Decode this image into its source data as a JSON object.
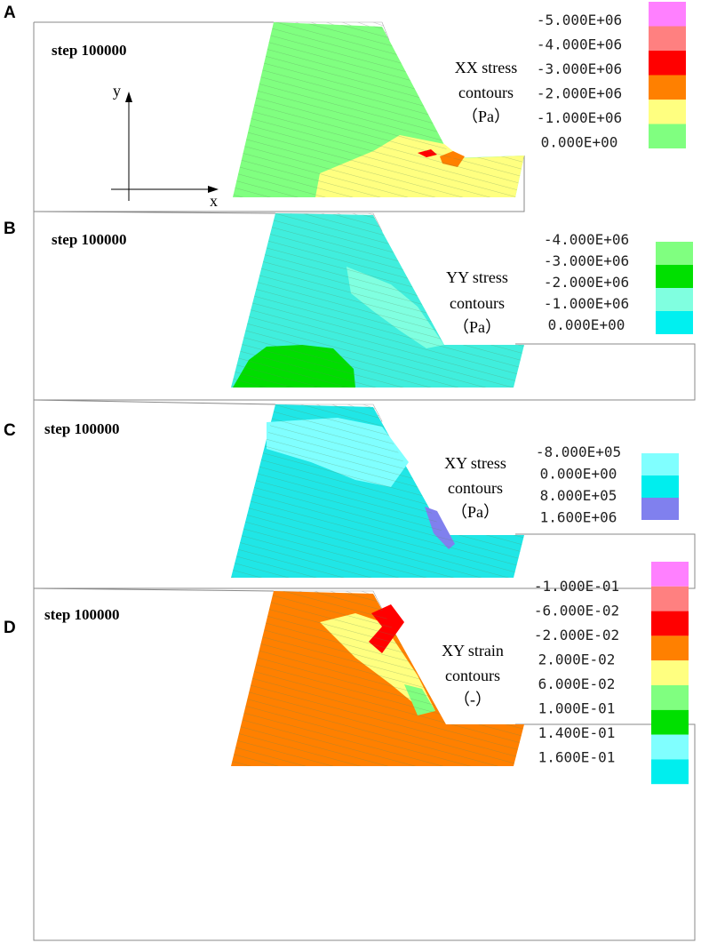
{
  "panels": [
    {
      "letter": "A",
      "step": "step 100000",
      "title": [
        "XX stress",
        "contours",
        "（Pa）"
      ],
      "legend": [
        {
          "label": "-5.000E+06",
          "color": "#ff80ff"
        },
        {
          "label": "-4.000E+06",
          "color": "#ff8080"
        },
        {
          "label": "-3.000E+06",
          "color": "#ff0000"
        },
        {
          "label": "-2.000E+06",
          "color": "#ff8000"
        },
        {
          "label": "-1.000E+06",
          "color": "#ffff80"
        },
        {
          "label": "0.000E+00",
          "color": "#80ff80"
        }
      ],
      "zones": [
        {
          "color": "#80ff80"
        },
        {
          "color": "#ffff80"
        },
        {
          "color": "#ff8000"
        },
        {
          "color": "#ff0000"
        }
      ],
      "axes": {
        "y": "y",
        "x": "x"
      }
    },
    {
      "letter": "B",
      "step": "step 100000",
      "title": [
        "YY stress",
        "contours",
        "（Pa）"
      ],
      "legend": [
        {
          "label": "-4.000E+06",
          "color": "#80ff80"
        },
        {
          "label": "-3.000E+06",
          "color": "#00e000"
        },
        {
          "label": "-2.000E+06",
          "color": "#80ffe0"
        },
        {
          "label": "-1.000E+06",
          "color": "#00f0f0"
        },
        {
          "label": "0.000E+00",
          "color": ""
        }
      ],
      "zones": [
        {
          "color": "#40eedd"
        },
        {
          "color": "#80ffe0"
        },
        {
          "color": "#00dd00"
        }
      ]
    },
    {
      "letter": "C",
      "step": "step 100000",
      "title": [
        "XY stress",
        "contours",
        "（Pa）"
      ],
      "legend": [
        {
          "label": "-8.000E+05",
          "color": "#80ffff"
        },
        {
          "label": "0.000E+00",
          "color": "#00eeee"
        },
        {
          "label": "8.000E+05",
          "color": "#8080ee"
        },
        {
          "label": "1.600E+06",
          "color": ""
        }
      ],
      "zones": [
        {
          "color": "#20e6e6"
        },
        {
          "color": "#80ffff"
        },
        {
          "color": "#8080ee"
        }
      ]
    },
    {
      "letter": "D",
      "step": "step 100000",
      "title": [
        "XY strain",
        "contours",
        "（-）"
      ],
      "legend": [
        {
          "label": "-1.000E-01",
          "color": "#ff80ff"
        },
        {
          "label": "-6.000E-02",
          "color": "#ff8080"
        },
        {
          "label": "-2.000E-02",
          "color": "#ff0000"
        },
        {
          "label": "2.000E-02",
          "color": "#ff8000"
        },
        {
          "label": "6.000E-02",
          "color": "#ffff80"
        },
        {
          "label": "1.000E-01",
          "color": "#80ff80"
        },
        {
          "label": "1.400E-01",
          "color": "#00e000"
        },
        {
          "label": "1.600E-01",
          "color": "#80ffff"
        },
        {
          "label": "",
          "color": "#00eeee"
        }
      ],
      "zones": [
        {
          "color": "#ff8000"
        },
        {
          "color": "#ffff80"
        },
        {
          "color": "#80ff80"
        },
        {
          "color": "#ff0000"
        }
      ]
    }
  ]
}
